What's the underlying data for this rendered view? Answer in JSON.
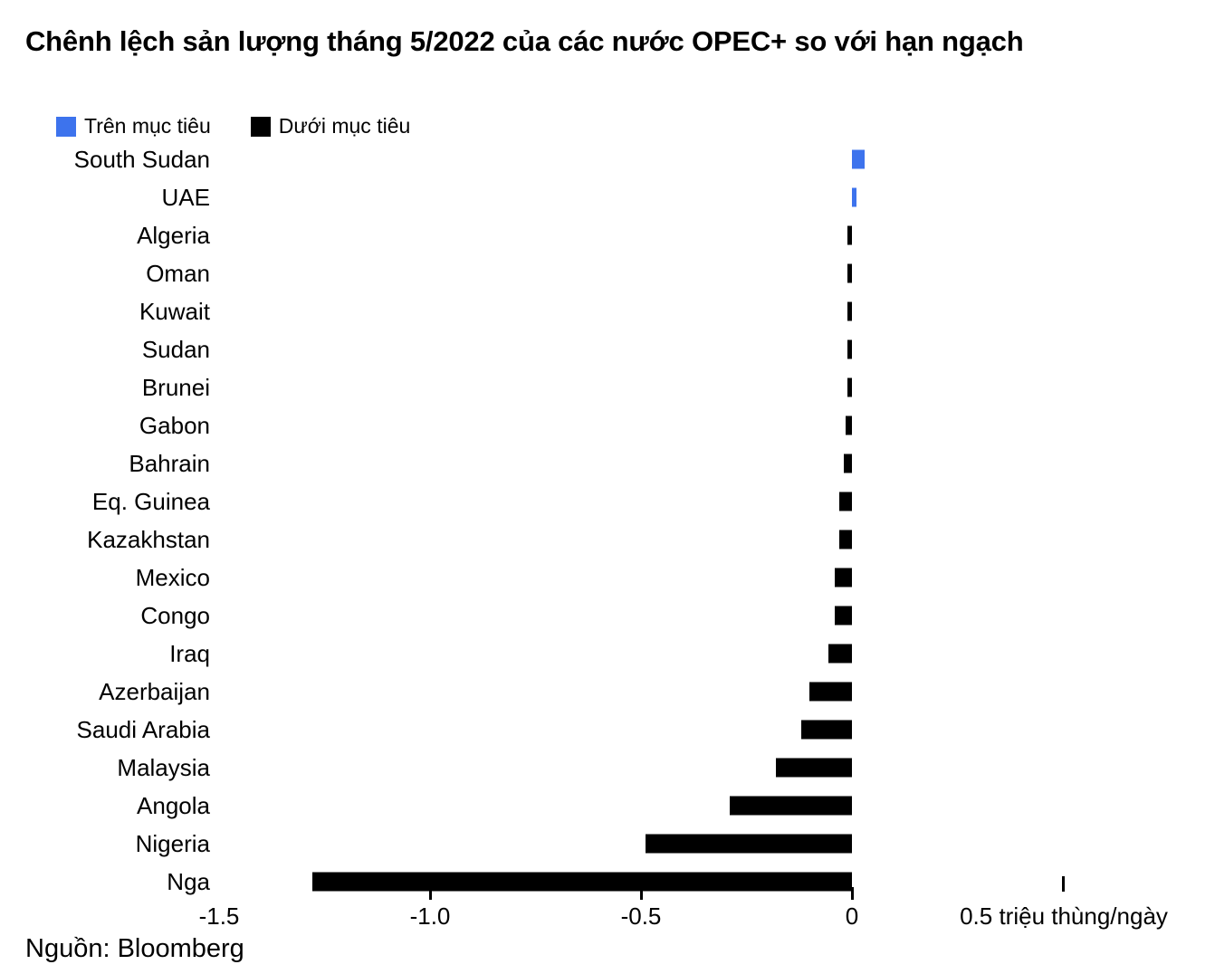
{
  "title": "Chênh lệch sản lượng tháng 5/2022 của các nước OPEC+ so với hạn ngạch",
  "legend": {
    "above": {
      "label": "Trên mục tiêu",
      "color": "#3D73ED"
    },
    "below": {
      "label": "Dưới mục tiêu",
      "color": "#000000"
    }
  },
  "source": "Nguồn: Bloomberg",
  "chart_data": {
    "type": "bar",
    "orientation": "horizontal",
    "title": "Chênh lệch sản lượng tháng 5/2022 của các nước OPEC+ so với hạn ngạch",
    "legend_entries": [
      "Trên mục tiêu",
      "Dưới mục tiêu"
    ],
    "legend_position": "top-left",
    "units": "triệu thùng/ngày",
    "unit_label": "0.5 triệu thùng/ngày",
    "categories": [
      "South Sudan",
      "UAE",
      "Algeria",
      "Oman",
      "Kuwait",
      "Sudan",
      "Brunei",
      "Gabon",
      "Bahrain",
      "Eq. Guinea",
      "Kazakhstan",
      "Mexico",
      "Congo",
      "Iraq",
      "Azerbaijan",
      "Saudi Arabia",
      "Malaysia",
      "Angola",
      "Nigeria",
      "Nga"
    ],
    "values": [
      0.03,
      0.01,
      -0.01,
      -0.01,
      -0.01,
      -0.01,
      -0.01,
      -0.015,
      -0.02,
      -0.03,
      -0.03,
      -0.04,
      -0.04,
      -0.055,
      -0.1,
      -0.12,
      -0.18,
      -0.29,
      -0.49,
      -1.28
    ],
    "xlim": [
      -1.5,
      0.5
    ],
    "x_tick_labels": [
      "-1.5",
      "-1.0",
      "-0.5",
      "0"
    ],
    "x_tick_values": [
      -1.5,
      -1.0,
      -0.5,
      0
    ],
    "tick_marks": [
      -1.0,
      -0.5,
      0
    ],
    "grid": false,
    "colors": {
      "positive": "#3D73ED",
      "negative": "#000000"
    }
  }
}
